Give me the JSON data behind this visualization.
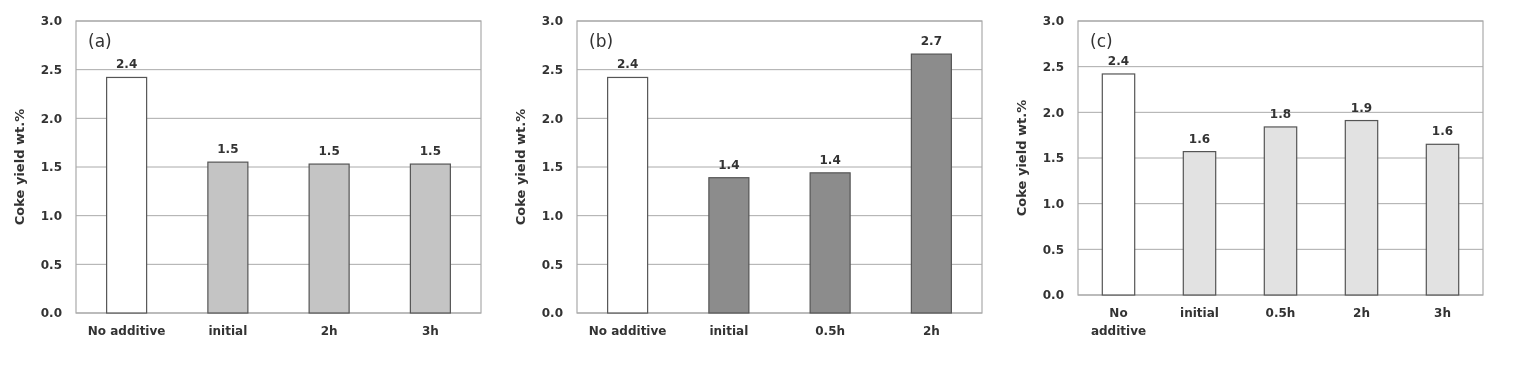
{
  "chart_data": [
    {
      "type": "bar",
      "ylabel": "Coke yield wt.%",
      "annotations": [
        "(a)"
      ],
      "categories": [
        "No additive",
        "initial",
        "2h",
        "3h"
      ],
      "values": [
        2.42,
        1.55,
        1.53,
        1.53
      ],
      "value_labels": [
        "2.4",
        "1.5",
        "1.5",
        "1.5"
      ],
      "colors": [
        "#ffffff",
        "#c4c4c4",
        "#c4c4c4",
        "#c4c4c4"
      ],
      "ylim": [
        0,
        3
      ],
      "yticks": [
        {
          "value": 0,
          "label": "0.0"
        },
        0.5,
        {
          "value": 1,
          "label": "1.0"
        },
        1.5,
        {
          "value": 2,
          "label": "2.0"
        },
        2.5,
        {
          "value": 3,
          "label": "3.0"
        }
      ],
      "grid": "y"
    },
    {
      "type": "bar",
      "ylabel": "Coke yield wt.%",
      "annotations": [
        "(b)"
      ],
      "categories": [
        "No additive",
        "initial",
        "0.5h",
        "2h"
      ],
      "values": [
        2.42,
        1.39,
        1.44,
        2.66
      ],
      "value_labels": [
        "2.4",
        "1.4",
        "1.4",
        "2.7"
      ],
      "colors": [
        "#ffffff",
        "#8c8c8c",
        "#8c8c8c",
        "#8c8c8c"
      ],
      "ylim": [
        0,
        3
      ],
      "yticks": [
        {
          "value": 0,
          "label": "0.0"
        },
        0.5,
        {
          "value": 1,
          "label": "1.0"
        },
        1.5,
        {
          "value": 2,
          "label": "2.0"
        },
        2.5,
        {
          "value": 3,
          "label": "3.0"
        }
      ],
      "grid": "y"
    },
    {
      "type": "bar",
      "ylabel": "Coke yield wt.%",
      "annotations": [
        "(c)"
      ],
      "categories": [
        "No additive",
        "initial",
        "0.5h",
        "2h",
        "3h"
      ],
      "values": [
        2.42,
        1.57,
        1.84,
        1.91,
        1.65
      ],
      "value_labels": [
        "2.4",
        "1.6",
        "1.8",
        "1.9",
        "1.6"
      ],
      "colors": [
        "#ffffff",
        "#e2e2e2",
        "#e2e2e2",
        "#e2e2e2",
        "#e2e2e2"
      ],
      "ylim": [
        0,
        3
      ],
      "yticks": [
        {
          "value": 0,
          "label": "0.0"
        },
        0.5,
        {
          "value": 1,
          "label": "1.0"
        },
        1.5,
        {
          "value": 2,
          "label": "2.0"
        },
        2.5,
        {
          "value": 3,
          "label": "3.0"
        }
      ],
      "grid": "y"
    }
  ]
}
